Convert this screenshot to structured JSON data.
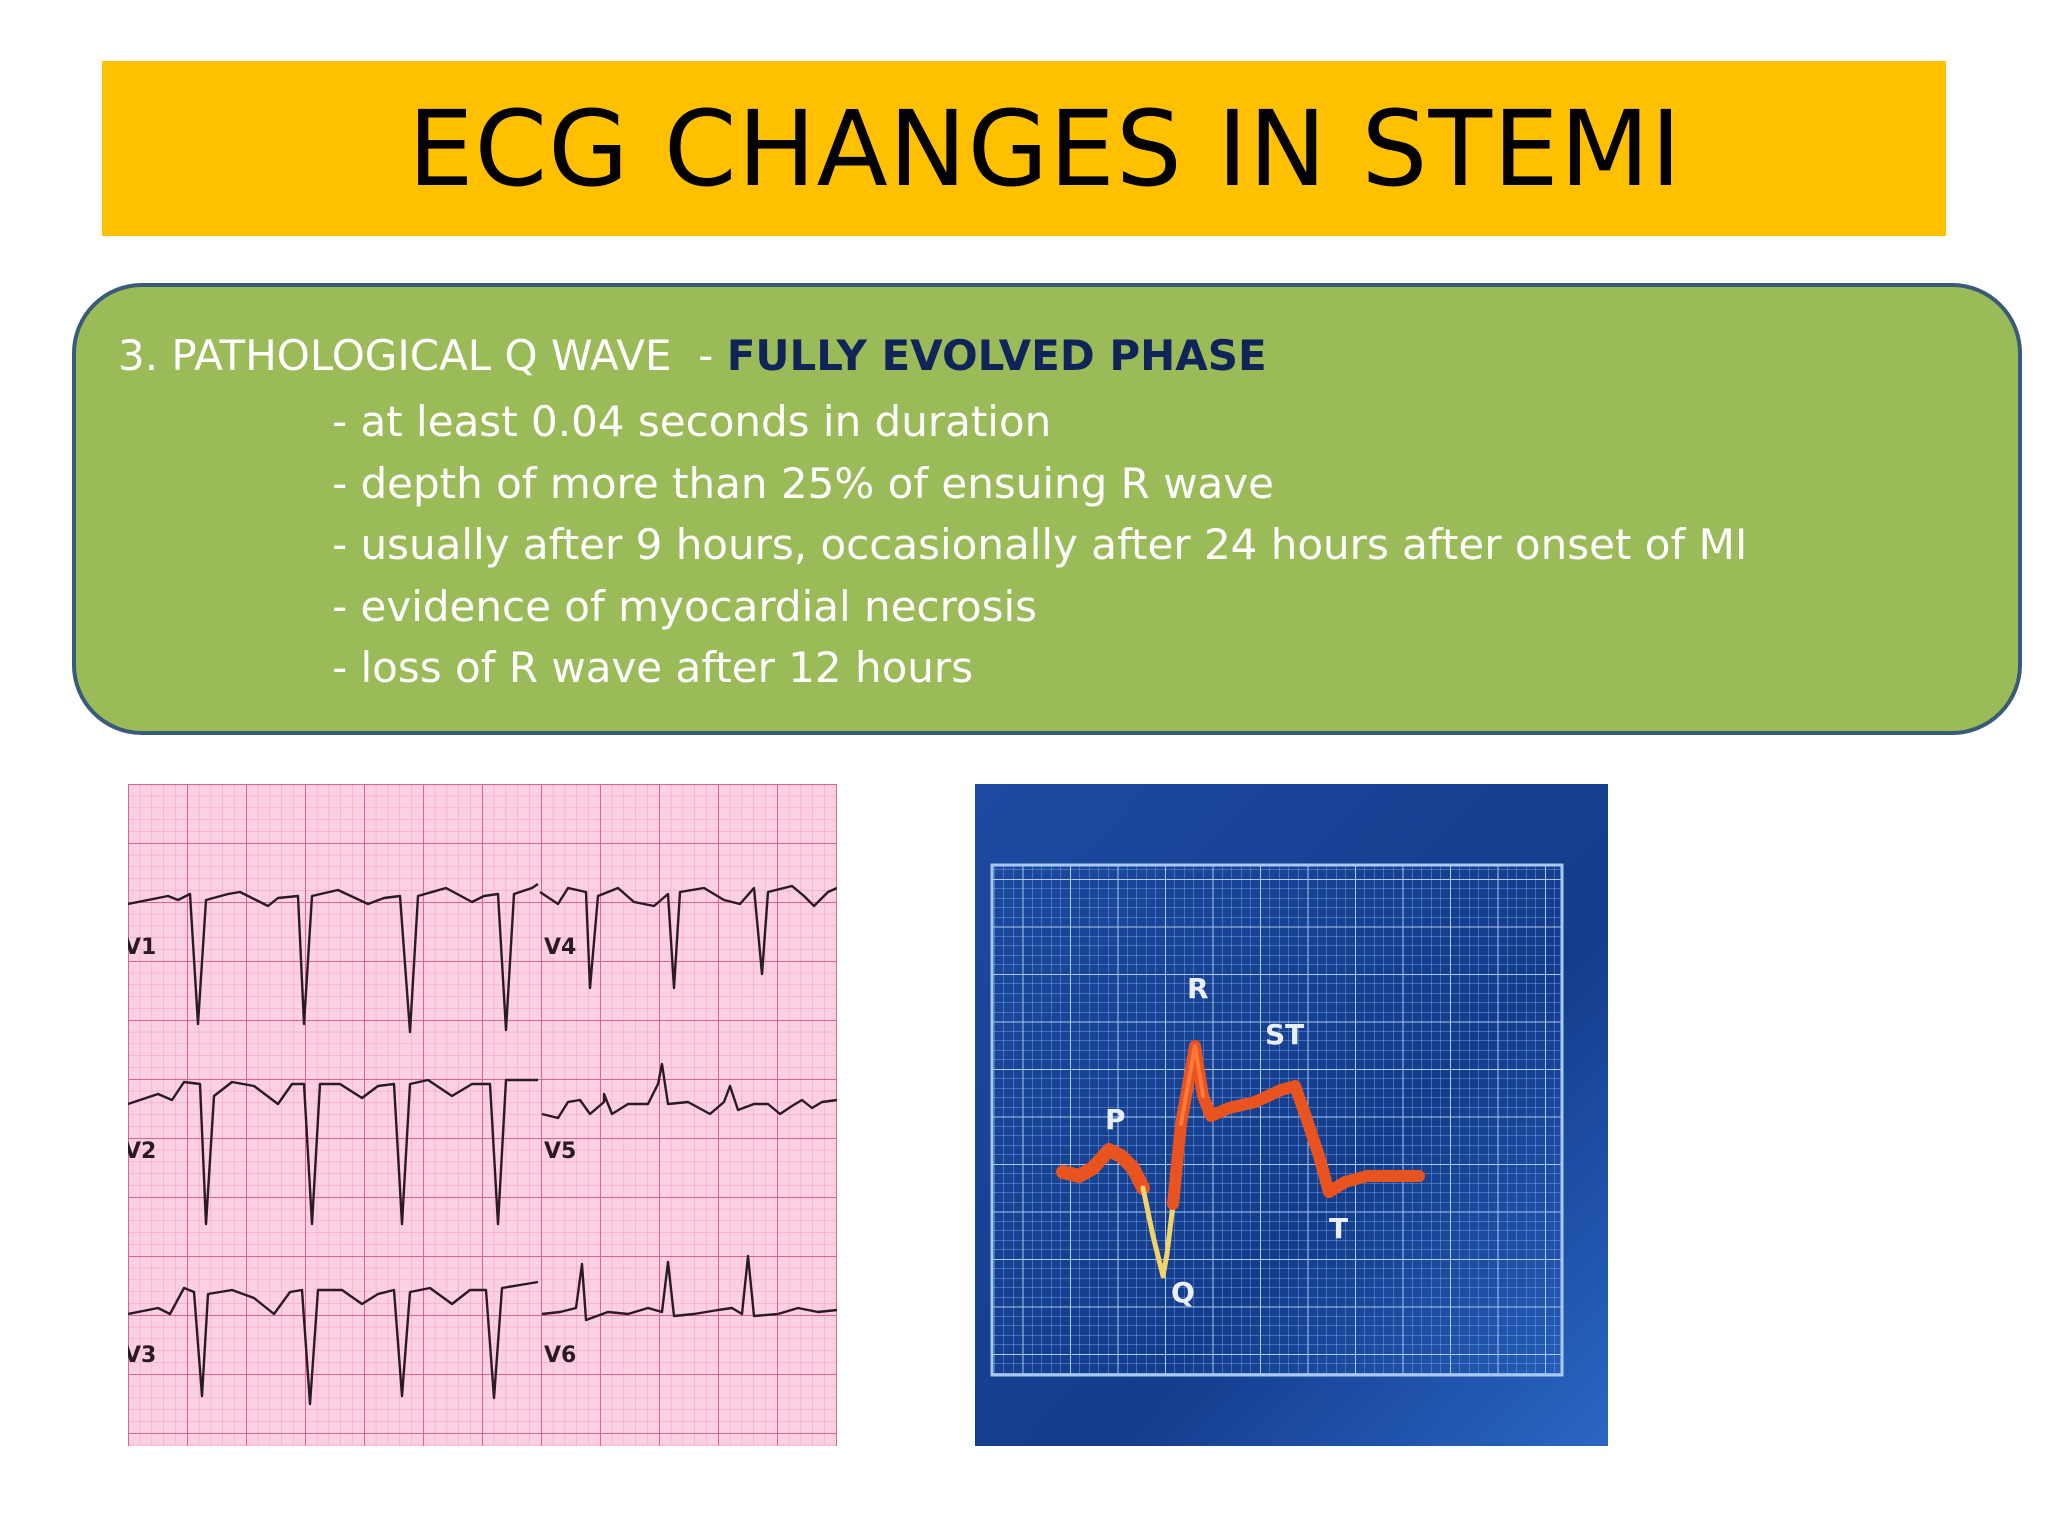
{
  "slide": {
    "title": "ECG CHANGES IN STEMI"
  },
  "info": {
    "heading_prefix": "3. PATHOLOGICAL Q WAVE  - ",
    "heading_phase": "FULLY EVOLVED PHASE",
    "bullets": [
      "- at least 0.04 seconds in duration",
      "- depth of more than 25% of ensuing R wave",
      "- usually after 9 hours, occasionally after 24 hours after onset of MI",
      "- evidence of myocardial necrosis",
      "- loss of R wave after 12 hours"
    ]
  },
  "ecg_strip": {
    "leads": [
      "V1",
      "V2",
      "V3",
      "V4",
      "V5",
      "V6"
    ]
  },
  "ecg_diagram": {
    "labels": {
      "p": "P",
      "q": "Q",
      "r": "R",
      "st": "ST",
      "t": "T"
    }
  },
  "colors": {
    "title_bg": "#ffc000",
    "box_bg": "#9bbb59",
    "box_border": "#3a5a7a",
    "phase_text": "#0f2559",
    "grid_pink": "#f3a6c9",
    "diagram_bg": "#143f96",
    "trace_orange": "#e8531f"
  }
}
